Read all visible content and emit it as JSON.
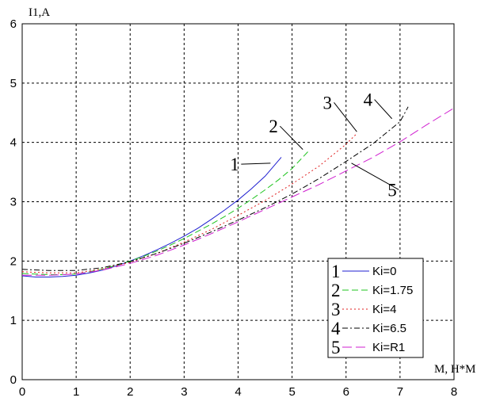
{
  "chart_data": {
    "type": "line",
    "title": "",
    "ylabel": "I1,A",
    "xlabel": "M, Н*М",
    "xlim": [
      0,
      8
    ],
    "ylim": [
      0,
      6
    ],
    "xticks": [
      "0",
      "1",
      "2",
      "3",
      "4",
      "5",
      "6",
      "7",
      "8"
    ],
    "yticks": [
      "0",
      "1",
      "2",
      "3",
      "4",
      "5",
      "6"
    ],
    "grid": true,
    "legend_position": "bottom-right",
    "colors": {
      "1": "#1f1fd0",
      "2": "#1fc41f",
      "3": "#e01f1f",
      "4": "#000000",
      "5": "#d01fd0"
    },
    "series": [
      {
        "name": "Ki=0",
        "number": "1",
        "dash": "solid",
        "x": [
          0,
          0.25,
          0.5,
          0.75,
          1.0,
          1.25,
          1.5,
          1.75,
          2.0,
          2.25,
          2.5,
          2.75,
          3.0,
          3.25,
          3.5,
          3.75,
          4.0,
          4.25,
          4.5,
          4.8
        ],
        "y": [
          1.75,
          1.73,
          1.73,
          1.74,
          1.76,
          1.8,
          1.85,
          1.92,
          2.0,
          2.09,
          2.19,
          2.3,
          2.42,
          2.55,
          2.7,
          2.86,
          3.03,
          3.22,
          3.43,
          3.75
        ]
      },
      {
        "name": "Ki=1.75",
        "number": "2",
        "dash": "long",
        "x": [
          0,
          0.25,
          0.5,
          0.75,
          1.0,
          1.25,
          1.5,
          1.75,
          2.0,
          2.25,
          2.5,
          2.75,
          3.0,
          3.25,
          3.5,
          3.75,
          4.0,
          4.25,
          4.5,
          4.75,
          5.0,
          5.3
        ],
        "y": [
          1.79,
          1.78,
          1.77,
          1.77,
          1.78,
          1.82,
          1.87,
          1.93,
          2.0,
          2.08,
          2.17,
          2.27,
          2.38,
          2.5,
          2.62,
          2.75,
          2.89,
          3.04,
          3.2,
          3.37,
          3.56,
          3.85
        ]
      },
      {
        "name": "Ki=4",
        "number": "3",
        "dash": "dotted",
        "x": [
          0,
          0.5,
          1.0,
          1.5,
          2.0,
          2.5,
          3.0,
          3.5,
          4.0,
          4.5,
          5.0,
          5.5,
          6.0,
          6.2
        ],
        "y": [
          1.82,
          1.8,
          1.8,
          1.87,
          1.98,
          2.13,
          2.32,
          2.53,
          2.77,
          3.02,
          3.3,
          3.6,
          3.97,
          4.15
        ]
      },
      {
        "name": "Ki=6.5",
        "number": "4",
        "dash": "dashdot",
        "x": [
          0,
          0.5,
          1.0,
          1.5,
          2.0,
          2.5,
          3.0,
          3.5,
          4.0,
          4.5,
          5.0,
          5.5,
          6.0,
          6.5,
          7.0,
          7.15
        ],
        "y": [
          1.86,
          1.84,
          1.84,
          1.89,
          1.99,
          2.13,
          2.3,
          2.49,
          2.69,
          2.9,
          3.13,
          3.39,
          3.68,
          3.98,
          4.35,
          4.6
        ]
      },
      {
        "name": "Ki=R1",
        "number": "5",
        "dash": "longdash",
        "x": [
          0,
          0.5,
          1.0,
          1.5,
          2.0,
          2.5,
          3.0,
          3.5,
          4.0,
          4.5,
          5.0,
          5.5,
          6.0,
          6.5,
          7.0,
          7.5,
          8.0
        ],
        "y": [
          1.76,
          1.76,
          1.78,
          1.85,
          1.96,
          2.1,
          2.27,
          2.46,
          2.66,
          2.87,
          3.08,
          3.29,
          3.52,
          3.75,
          4.01,
          4.3,
          4.58
        ]
      }
    ],
    "annotations": [
      {
        "text": "1",
        "x": 3.88,
        "y": 3.58,
        "line_to": [
          4.6,
          3.65
        ]
      },
      {
        "text": "2",
        "x": 4.6,
        "y": 4.22,
        "line_to": [
          5.2,
          3.88
        ]
      },
      {
        "text": "3",
        "x": 5.6,
        "y": 4.62,
        "line_to": [
          6.2,
          4.18
        ]
      },
      {
        "text": "4",
        "x": 6.35,
        "y": 4.67,
        "line_to": [
          6.85,
          4.4
        ]
      },
      {
        "text": "5",
        "x": 6.8,
        "y": 3.15,
        "line_to": [
          6.1,
          3.65
        ]
      }
    ]
  }
}
